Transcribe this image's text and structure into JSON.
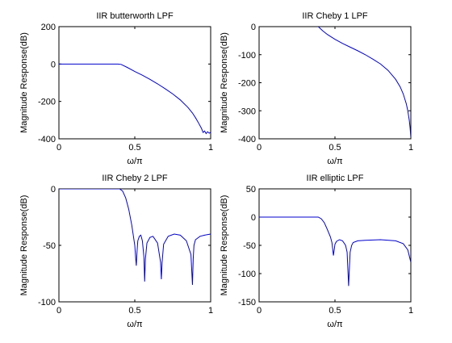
{
  "figure": {
    "background": "#ffffff",
    "line_color": "#0000cc"
  },
  "chart_data": [
    {
      "type": "line",
      "title": "IIR butterworth LPF",
      "xlabel": "ω/π",
      "ylabel": "Magnitude Response(dB)",
      "xlim": [
        0,
        1
      ],
      "ylim": [
        -400,
        200
      ],
      "xticks": [
        0,
        0.5,
        1
      ],
      "xtick_labels": [
        "0",
        "0.5",
        "1"
      ],
      "yticks": [
        -400,
        -200,
        0,
        200
      ],
      "ytick_labels": [
        "-400",
        "-200",
        "0",
        "200"
      ],
      "series": [
        {
          "color": "#0000cc",
          "x": [
            0,
            0.2,
            0.39,
            0.41,
            0.45,
            0.5,
            0.55,
            0.6,
            0.65,
            0.7,
            0.75,
            0.8,
            0.85,
            0.88,
            0.9,
            0.92,
            0.94,
            0.95,
            0.96,
            0.97,
            0.98,
            0.99,
            1.0
          ],
          "y": [
            0,
            0,
            0,
            -2,
            -18,
            -40,
            -60,
            -82,
            -106,
            -132,
            -160,
            -192,
            -232,
            -262,
            -287,
            -315,
            -345,
            -366,
            -358,
            -372,
            -362,
            -370,
            -365
          ]
        }
      ]
    },
    {
      "type": "line",
      "title": "IIR Cheby 1 LPF",
      "xlabel": "ω/π",
      "ylabel": "Magnitude Response(dB)",
      "xlim": [
        0,
        1
      ],
      "ylim": [
        -400,
        0
      ],
      "xticks": [
        0,
        0.5,
        1
      ],
      "xtick_labels": [
        "0",
        "0.5",
        "1"
      ],
      "yticks": [
        -400,
        -300,
        -200,
        -100,
        0
      ],
      "ytick_labels": [
        "-400",
        "-300",
        "-200",
        "-100",
        "0"
      ],
      "series": [
        {
          "color": "#0000cc",
          "x": [
            0.39,
            0.42,
            0.45,
            0.5,
            0.55,
            0.6,
            0.65,
            0.7,
            0.75,
            0.8,
            0.85,
            0.9,
            0.93,
            0.95,
            0.97,
            0.98,
            0.99,
            0.995,
            1.0
          ],
          "y": [
            0,
            -15,
            -28,
            -45,
            -60,
            -73,
            -86,
            -100,
            -116,
            -133,
            -156,
            -188,
            -215,
            -240,
            -275,
            -300,
            -335,
            -360,
            -395
          ]
        }
      ]
    },
    {
      "type": "line",
      "title": "IIR Cheby 2 LPF",
      "xlabel": "ω/π",
      "ylabel": "Magnitude Response(dB)",
      "xlim": [
        0,
        1
      ],
      "ylim": [
        -100,
        0
      ],
      "xticks": [
        0,
        0.5,
        1
      ],
      "xtick_labels": [
        "0",
        "0.5",
        "1"
      ],
      "yticks": [
        -100,
        -50,
        0
      ],
      "ytick_labels": [
        "-100",
        "-50",
        "0"
      ],
      "series": [
        {
          "color": "#0000cc",
          "x": [
            0,
            0.2,
            0.4,
            0.42,
            0.44,
            0.46,
            0.48,
            0.5,
            0.505,
            0.51,
            0.515,
            0.52,
            0.53,
            0.54,
            0.55,
            0.56,
            0.565,
            0.57,
            0.58,
            0.6,
            0.62,
            0.65,
            0.67,
            0.675,
            0.68,
            0.69,
            0.72,
            0.76,
            0.8,
            0.84,
            0.87,
            0.88,
            0.885,
            0.89,
            0.9,
            0.93,
            0.96,
            1.0
          ],
          "y": [
            0,
            0,
            0,
            -2,
            -8,
            -18,
            -32,
            -50,
            -60,
            -68,
            -55,
            -46,
            -42,
            -41,
            -46,
            -60,
            -82,
            -62,
            -48,
            -43,
            -42,
            -48,
            -65,
            -80,
            -65,
            -49,
            -42,
            -40,
            -41,
            -46,
            -58,
            -85,
            -62,
            -50,
            -45,
            -42,
            -41,
            -40
          ]
        }
      ]
    },
    {
      "type": "line",
      "title": "IIR elliptic LPF",
      "xlabel": "ω/π",
      "ylabel": "Magnitude Response(dB)",
      "xlim": [
        0,
        1
      ],
      "ylim": [
        -150,
        50
      ],
      "xticks": [
        0,
        0.5,
        1
      ],
      "xtick_labels": [
        "0",
        "0.5",
        "1"
      ],
      "yticks": [
        -150,
        -100,
        -50,
        0,
        50
      ],
      "ytick_labels": [
        "-150",
        "-100",
        "-50",
        "0",
        "50"
      ],
      "series": [
        {
          "color": "#0000cc",
          "x": [
            0,
            0.2,
            0.39,
            0.41,
            0.43,
            0.45,
            0.47,
            0.48,
            0.49,
            0.5,
            0.51,
            0.53,
            0.55,
            0.57,
            0.58,
            0.59,
            0.6,
            0.61,
            0.62,
            0.65,
            0.7,
            0.8,
            0.9,
            0.95,
            0.98,
            1.0
          ],
          "y": [
            0,
            0,
            0,
            -3,
            -10,
            -22,
            -35,
            -45,
            -68,
            -48,
            -43,
            -40,
            -42,
            -50,
            -62,
            -122,
            -62,
            -50,
            -45,
            -42,
            -41,
            -40,
            -42,
            -47,
            -58,
            -80
          ]
        }
      ]
    }
  ]
}
